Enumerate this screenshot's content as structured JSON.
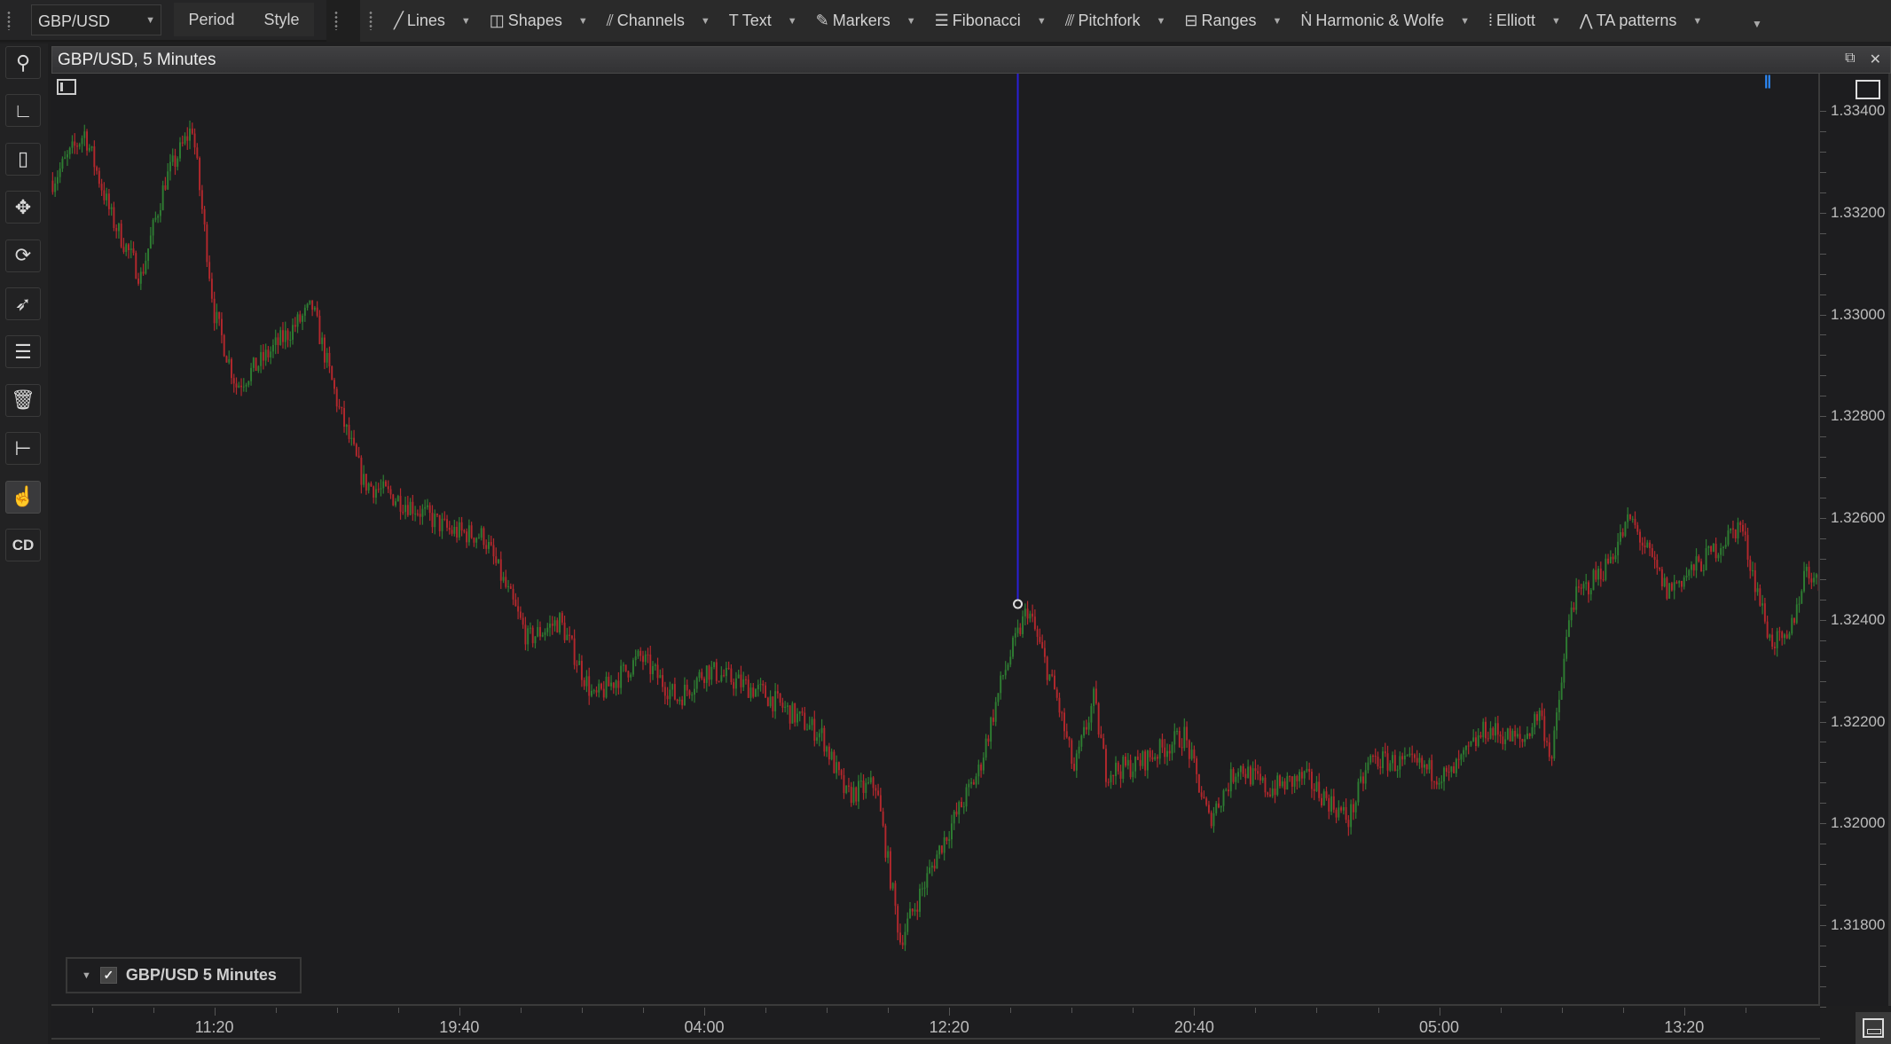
{
  "toolbar": {
    "symbol": "GBP/USD",
    "period_label": "Period",
    "style_label": "Style",
    "tools": [
      {
        "label": "Lines",
        "icon": "line-icon"
      },
      {
        "label": "Shapes",
        "icon": "shapes-icon"
      },
      {
        "label": "Channels",
        "icon": "channels-icon"
      },
      {
        "label": "Text",
        "icon": "text-icon"
      },
      {
        "label": "Markers",
        "icon": "marker-icon"
      },
      {
        "label": "Fibonacci",
        "icon": "fibonacci-icon"
      },
      {
        "label": "Pitchfork",
        "icon": "pitchfork-icon"
      },
      {
        "label": "Ranges",
        "icon": "ranges-icon"
      },
      {
        "label": "Harmonic & Wolfe",
        "icon": "harmonic-icon"
      },
      {
        "label": "Elliott",
        "icon": "elliott-icon"
      },
      {
        "label": "TA patterns",
        "icon": "ta-patterns-icon"
      }
    ]
  },
  "sidebar": {
    "items": [
      "zoom-icon",
      "axis-scale-icon",
      "mouse-scroll-icon",
      "pan-icon",
      "refresh-icon",
      "cursor-icon",
      "layers-icon",
      "trash-icon",
      "volume-profile-icon",
      "one-click-trading-icon",
      "CD"
    ]
  },
  "chart": {
    "title": "GBP/USD, 5 Minutes",
    "legend": "GBP/USD 5 Minutes",
    "legend_checked": true,
    "colors": {
      "up": "#2e7d32",
      "down": "#b3282d",
      "marker_line": "#2a1fd6",
      "background": "#1d1d1f"
    }
  },
  "chart_data": {
    "type": "candlestick",
    "price_ticks": [
      "1.33400",
      "1.33200",
      "1.33000",
      "1.32800",
      "1.32600",
      "1.32400",
      "1.32200",
      "1.32000",
      "1.31800"
    ],
    "ylim": [
      1.3168,
      1.3347
    ],
    "time_ticks": [
      {
        "label": "11:20",
        "bar": 66
      },
      {
        "label": "19:40",
        "bar": 166
      },
      {
        "label": "04:00",
        "bar": 266
      },
      {
        "label": "12:20",
        "bar": 366
      },
      {
        "label": "20:40",
        "bar": 466
      },
      {
        "label": "05:00",
        "bar": 566
      },
      {
        "label": "13:20",
        "bar": 666
      }
    ],
    "bar_interval": "5 Minutes",
    "bar_count": 722,
    "price_path": [
      [
        0,
        1.33263
      ],
      [
        13,
        1.33357
      ],
      [
        24,
        1.33191
      ],
      [
        36,
        1.33073
      ],
      [
        46,
        1.33263
      ],
      [
        57,
        1.33369
      ],
      [
        66,
        1.33002
      ],
      [
        75,
        1.3286
      ],
      [
        85,
        1.32907
      ],
      [
        106,
        1.33014
      ],
      [
        117,
        1.32812
      ],
      [
        127,
        1.3267
      ],
      [
        147,
        1.32623
      ],
      [
        162,
        1.32575
      ],
      [
        176,
        1.32564
      ],
      [
        194,
        1.32362
      ],
      [
        207,
        1.32398
      ],
      [
        221,
        1.32244
      ],
      [
        240,
        1.32327
      ],
      [
        255,
        1.32244
      ],
      [
        267,
        1.32303
      ],
      [
        290,
        1.32256
      ],
      [
        314,
        1.32173
      ],
      [
        324,
        1.32054
      ],
      [
        336,
        1.32077
      ],
      [
        346,
        1.3177
      ],
      [
        363,
        1.3196
      ],
      [
        378,
        1.32102
      ],
      [
        388,
        1.32291
      ],
      [
        398,
        1.32422
      ],
      [
        410,
        1.32244
      ],
      [
        417,
        1.32102
      ],
      [
        425,
        1.32244
      ],
      [
        430,
        1.32102
      ],
      [
        442,
        1.32114
      ],
      [
        462,
        1.32173
      ],
      [
        472,
        1.32007
      ],
      [
        484,
        1.32114
      ],
      [
        496,
        1.32066
      ],
      [
        511,
        1.3209
      ],
      [
        529,
        1.32007
      ],
      [
        538,
        1.32126
      ],
      [
        556,
        1.32114
      ],
      [
        570,
        1.3209
      ],
      [
        585,
        1.32185
      ],
      [
        600,
        1.32161
      ],
      [
        607,
        1.3222
      ],
      [
        612,
        1.32126
      ],
      [
        620,
        1.32433
      ],
      [
        634,
        1.32505
      ],
      [
        644,
        1.32599
      ],
      [
        659,
        1.32457
      ],
      [
        674,
        1.32516
      ],
      [
        689,
        1.32588
      ],
      [
        701,
        1.32362
      ],
      [
        708,
        1.3235
      ],
      [
        716,
        1.32505
      ],
      [
        722,
        1.32457
      ]
    ],
    "vertical_marker": {
      "bar": 394,
      "price": 1.32431
    }
  }
}
